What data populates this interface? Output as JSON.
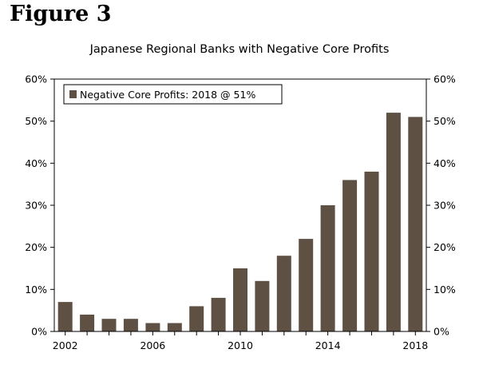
{
  "figure_label": "Figure 3",
  "chart_data": {
    "type": "bar",
    "title": "Japanese Regional Banks with Negative Core Profits",
    "series": [
      {
        "name": "Negative Core Profits: 2018 @ 51%",
        "color": "#5f5044",
        "x": [
          2002,
          2003,
          2004,
          2005,
          2006,
          2007,
          2008,
          2009,
          2010,
          2011,
          2012,
          2013,
          2014,
          2015,
          2016,
          2017,
          2018
        ],
        "values": [
          7,
          4,
          3,
          3,
          2,
          2,
          6,
          8,
          15,
          12,
          18,
          22,
          30,
          36,
          38,
          52,
          51
        ]
      }
    ],
    "x_tick_labels": [
      "2002",
      "2006",
      "2010",
      "2014",
      "2018"
    ],
    "y_tick_labels": [
      "0%",
      "10%",
      "20%",
      "30%",
      "40%",
      "50%",
      "60%"
    ],
    "ylim": [
      0,
      60
    ],
    "y_unit": "%",
    "xlabel": "",
    "ylabel": "",
    "legend_position": "top-left",
    "grid": false
  }
}
